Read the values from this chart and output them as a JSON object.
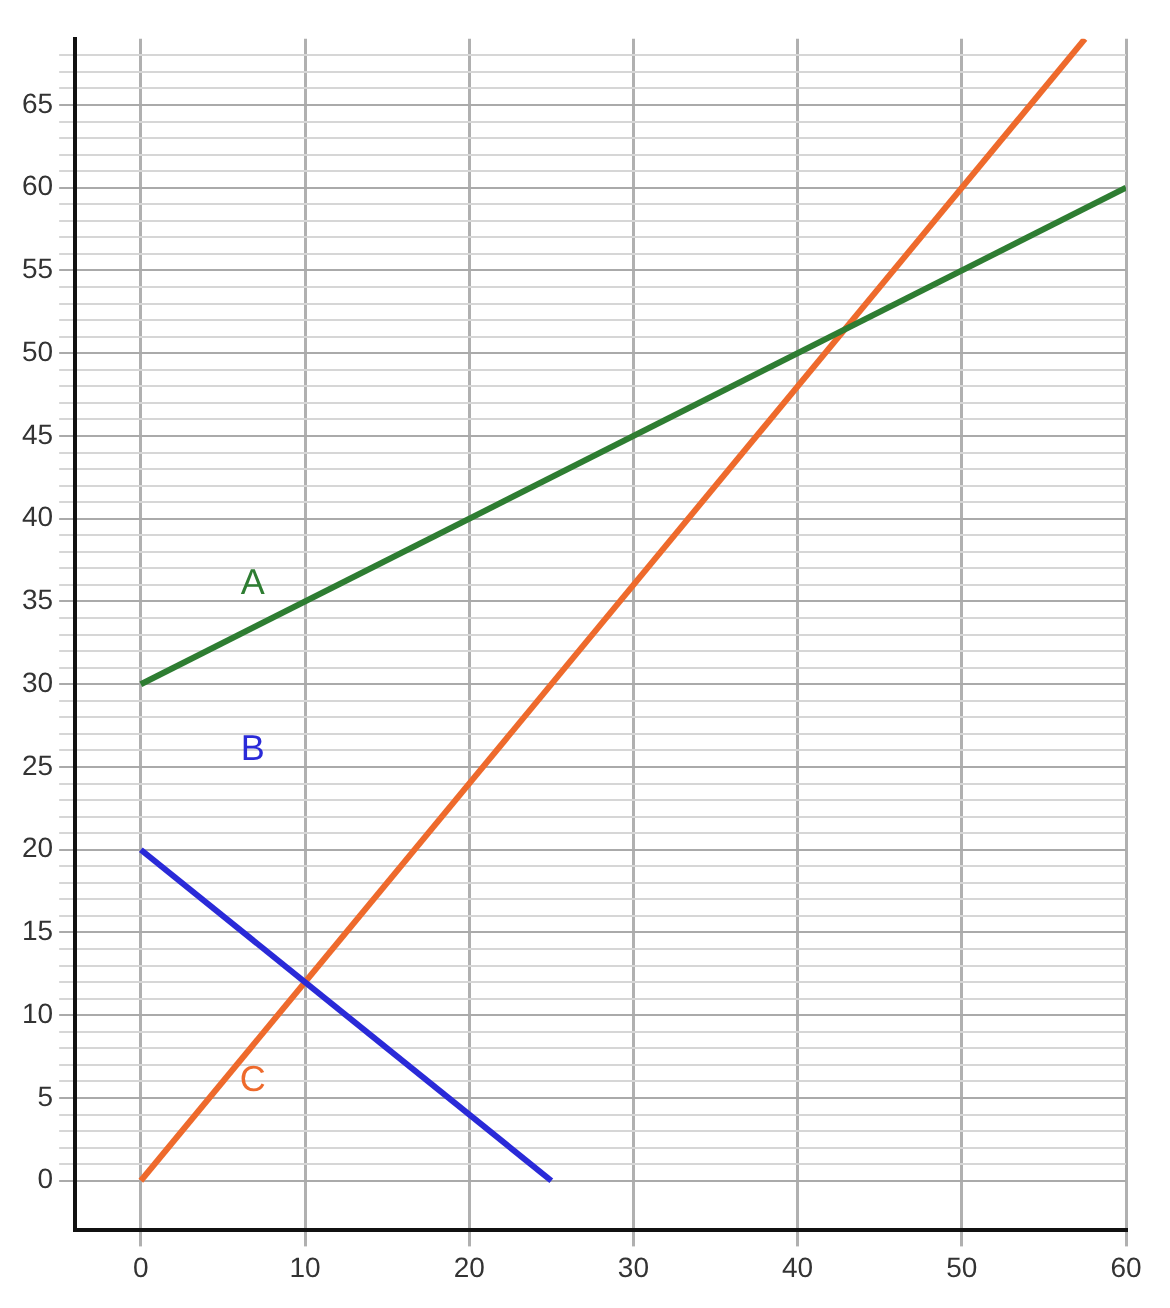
{
  "chart_data": {
    "type": "line",
    "xlim": [
      -4,
      60
    ],
    "ylim": [
      -3,
      69
    ],
    "xticks": [
      0,
      10,
      20,
      30,
      40,
      50,
      60
    ],
    "yticks": [
      0,
      {
        "value": 1,
        "label": null
      },
      {
        "value": 2,
        "label": null
      },
      {
        "value": 3,
        "label": null
      },
      {
        "value": 4,
        "label": null
      },
      5,
      {
        "value": 6,
        "label": null
      },
      {
        "value": 7,
        "label": null
      },
      {
        "value": 8,
        "label": null
      },
      {
        "value": 9,
        "label": null
      },
      10,
      {
        "value": 11,
        "label": null
      },
      {
        "value": 12,
        "label": null
      },
      {
        "value": 13,
        "label": null
      },
      {
        "value": 14,
        "label": null
      },
      15,
      {
        "value": 16,
        "label": null
      },
      {
        "value": 17,
        "label": null
      },
      {
        "value": 18,
        "label": null
      },
      {
        "value": 19,
        "label": null
      },
      20,
      {
        "value": 21,
        "label": null
      },
      {
        "value": 22,
        "label": null
      },
      {
        "value": 23,
        "label": null
      },
      {
        "value": 24,
        "label": null
      },
      25,
      {
        "value": 26,
        "label": null
      },
      {
        "value": 27,
        "label": null
      },
      {
        "value": 28,
        "label": null
      },
      {
        "value": 29,
        "label": null
      },
      30,
      {
        "value": 31,
        "label": null
      },
      {
        "value": 32,
        "label": null
      },
      {
        "value": 33,
        "label": null
      },
      {
        "value": 34,
        "label": null
      },
      35,
      {
        "value": 36,
        "label": null
      },
      {
        "value": 37,
        "label": null
      },
      {
        "value": 38,
        "label": null
      },
      {
        "value": 39,
        "label": null
      },
      40,
      {
        "value": 41,
        "label": null
      },
      {
        "value": 42,
        "label": null
      },
      {
        "value": 43,
        "label": null
      },
      {
        "value": 44,
        "label": null
      },
      45,
      {
        "value": 46,
        "label": null
      },
      {
        "value": 47,
        "label": null
      },
      {
        "value": 48,
        "label": null
      },
      {
        "value": 49,
        "label": null
      },
      50,
      {
        "value": 51,
        "label": null
      },
      {
        "value": 52,
        "label": null
      },
      {
        "value": 53,
        "label": null
      },
      {
        "value": 54,
        "label": null
      },
      55,
      {
        "value": 56,
        "label": null
      },
      {
        "value": 57,
        "label": null
      },
      {
        "value": 58,
        "label": null
      },
      {
        "value": 59,
        "label": null
      },
      60,
      {
        "value": 61,
        "label": null
      },
      {
        "value": 62,
        "label": null
      },
      {
        "value": 63,
        "label": null
      },
      {
        "value": 64,
        "label": null
      },
      65,
      {
        "value": 66,
        "label": null
      },
      {
        "value": 67,
        "label": null
      },
      {
        "value": 68,
        "label": null
      }
    ],
    "grid": true,
    "marker": "none",
    "line_style": "solid",
    "legend": false,
    "series": [
      {
        "name": "A",
        "color": "#2e7d32",
        "x": [
          0,
          60
        ],
        "values": [
          30,
          60
        ]
      },
      {
        "name": "B",
        "color": "#2a2ad8",
        "x": [
          0,
          25
        ],
        "values": [
          20,
          0
        ]
      },
      {
        "name": "C",
        "color": "#ee6a2c",
        "x": [
          0,
          57.5
        ],
        "values": [
          0,
          69
        ]
      }
    ]
  }
}
